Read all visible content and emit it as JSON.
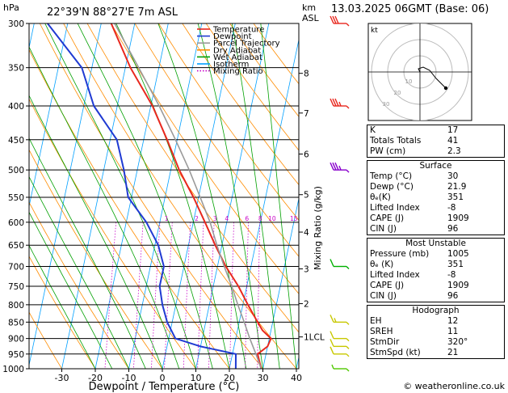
{
  "header": {
    "hpa_label": "hPa",
    "location": "22°39'N  88°27'E  7m  ASL",
    "km_label": "km",
    "asl_label": "ASL",
    "datetime": "13.03.2025  06GMT  (Base: 06)"
  },
  "legend": [
    {
      "label": "Temperature",
      "color": "#e8281e",
      "style": "solid"
    },
    {
      "label": "Dewpoint",
      "color": "#1f3ad2",
      "style": "solid"
    },
    {
      "label": "Parcel Trajectory",
      "color": "#9a9a9a",
      "style": "solid"
    },
    {
      "label": "Dry Adiabat",
      "color": "#ff8c00",
      "style": "solid"
    },
    {
      "label": "Wet Adiabat",
      "color": "#00a000",
      "style": "solid"
    },
    {
      "label": "Isotherm",
      "color": "#00a0ff",
      "style": "solid"
    },
    {
      "label": "Mixing Ratio",
      "color": "#c800c8",
      "style": "dotted"
    }
  ],
  "chart_data": {
    "type": "line",
    "subtype": "skew-T log-P",
    "xlabel": "Dewpoint / Temperature (°C)",
    "ylabel": "",
    "secondary_ylabel": "Mixing Ratio (g/kg)",
    "x_ticks": [
      -30,
      -20,
      -10,
      0,
      10,
      20,
      30,
      40
    ],
    "pressure_levels": [
      300,
      350,
      400,
      450,
      500,
      550,
      600,
      650,
      700,
      750,
      800,
      850,
      900,
      950,
      1000
    ],
    "km_ticks": [
      {
        "label": "8",
        "p": 357
      },
      {
        "label": "7",
        "p": 410
      },
      {
        "label": "6",
        "p": 473
      },
      {
        "label": "5",
        "p": 545
      },
      {
        "label": "4",
        "p": 621
      },
      {
        "label": "3",
        "p": 706
      },
      {
        "label": "2",
        "p": 797
      },
      {
        "label": "1LCL",
        "p": 895
      }
    ],
    "mixing_ratio_labels": [
      {
        "label": "1",
        "p": 600,
        "t": -8
      },
      {
        "label": "2",
        "p": 600,
        "t": 1
      },
      {
        "label": "3",
        "p": 600,
        "t": 6.5
      },
      {
        "label": "4",
        "p": 600,
        "t": 10
      },
      {
        "label": "6",
        "p": 600,
        "t": 16
      },
      {
        "label": "8",
        "p": 600,
        "t": 20
      },
      {
        "label": "10",
        "p": 600,
        "t": 23.5
      },
      {
        "label": "15",
        "p": 600,
        "t": 30
      },
      {
        "label": "20",
        "p": 600,
        "t": 34.5
      },
      {
        "label": "25",
        "p": 600,
        "t": 38
      }
    ],
    "series": [
      {
        "name": "Temperature",
        "points": [
          [
            1000,
            29.5
          ],
          [
            950,
            27.5
          ],
          [
            925,
            30.0
          ],
          [
            900,
            30.5
          ],
          [
            875,
            27.5
          ],
          [
            850,
            25.5
          ],
          [
            800,
            21.5
          ],
          [
            750,
            17.5
          ],
          [
            700,
            12.5
          ],
          [
            650,
            8.0
          ],
          [
            600,
            3.5
          ],
          [
            550,
            -1.5
          ],
          [
            500,
            -7.5
          ],
          [
            450,
            -13.0
          ],
          [
            400,
            -19.5
          ],
          [
            350,
            -28.5
          ],
          [
            300,
            -37.0
          ]
        ]
      },
      {
        "name": "Dewpoint",
        "points": [
          [
            1000,
            21.9
          ],
          [
            950,
            21.0
          ],
          [
            925,
            10.0
          ],
          [
            900,
            2.0
          ],
          [
            850,
            -1.5
          ],
          [
            800,
            -4.0
          ],
          [
            750,
            -6.0
          ],
          [
            700,
            -6.0
          ],
          [
            650,
            -9.0
          ],
          [
            600,
            -14.0
          ],
          [
            550,
            -21.0
          ],
          [
            500,
            -24.0
          ],
          [
            450,
            -28.0
          ],
          [
            400,
            -37.0
          ],
          [
            350,
            -43.0
          ],
          [
            300,
            -56.0
          ]
        ]
      },
      {
        "name": "Parcel Trajectory",
        "points": [
          [
            1000,
            29.5
          ],
          [
            950,
            27.0
          ],
          [
            900,
            24.2
          ],
          [
            850,
            21.5
          ],
          [
            800,
            18.5
          ],
          [
            750,
            15.5
          ],
          [
            700,
            12.0
          ],
          [
            650,
            8.5
          ],
          [
            600,
            5.0
          ],
          [
            550,
            0.5
          ],
          [
            500,
            -4.5
          ],
          [
            450,
            -10.5
          ],
          [
            400,
            -17.5
          ],
          [
            350,
            -26.0
          ],
          [
            300,
            -36.0
          ]
        ]
      }
    ],
    "hodograph": {
      "label": "kt",
      "ring_labels": [
        "10",
        "20",
        "30"
      ],
      "points": [
        [
          0,
          0
        ],
        [
          -1,
          2
        ],
        [
          2,
          3
        ],
        [
          6,
          1
        ],
        [
          10,
          -4
        ],
        [
          16,
          -10
        ]
      ]
    },
    "wind_barbs": [
      {
        "p": 300,
        "speed": 30,
        "color": "#e8281e"
      },
      {
        "p": 400,
        "speed": 35,
        "color": "#e8281e"
      },
      {
        "p": 500,
        "speed": 35,
        "color": "#8800cc"
      },
      {
        "p": 700,
        "speed": 10,
        "color": "#00b000"
      },
      {
        "p": 850,
        "speed": 15,
        "color": "#c8c800"
      },
      {
        "p": 900,
        "speed": 10,
        "color": "#c8c800"
      },
      {
        "p": 925,
        "speed": 10,
        "color": "#c8c800"
      },
      {
        "p": 950,
        "speed": 10,
        "color": "#c8c800"
      },
      {
        "p": 1000,
        "speed": 5,
        "color": "#50c800"
      }
    ]
  },
  "indices": [
    {
      "label": "K",
      "value": "17"
    },
    {
      "label": "Totals Totals",
      "value": "41"
    },
    {
      "label": "PW (cm)",
      "value": "2.3"
    }
  ],
  "surface": {
    "title": "Surface",
    "rows": [
      {
        "label": "Temp (°C)",
        "value": "30"
      },
      {
        "label": "Dewp (°C)",
        "value": "21.9"
      },
      {
        "label": "θₑ(K)",
        "value": "351"
      },
      {
        "label": "Lifted Index",
        "value": "-8"
      },
      {
        "label": "CAPE (J)",
        "value": "1909"
      },
      {
        "label": "CIN (J)",
        "value": "96"
      }
    ]
  },
  "most_unstable": {
    "title": "Most Unstable",
    "rows": [
      {
        "label": "Pressure (mb)",
        "value": "1005"
      },
      {
        "label": "θₑ (K)",
        "value": "351"
      },
      {
        "label": "Lifted Index",
        "value": "-8"
      },
      {
        "label": "CAPE (J)",
        "value": "1909"
      },
      {
        "label": "CIN (J)",
        "value": "96"
      }
    ]
  },
  "hodograph_table": {
    "title": "Hodograph",
    "rows": [
      {
        "label": "EH",
        "value": "12"
      },
      {
        "label": "SREH",
        "value": "11"
      },
      {
        "label": "StmDir",
        "value": "320°"
      },
      {
        "label": "StmSpd (kt)",
        "value": "21"
      }
    ]
  },
  "footer": "© weatheronline.co.uk"
}
